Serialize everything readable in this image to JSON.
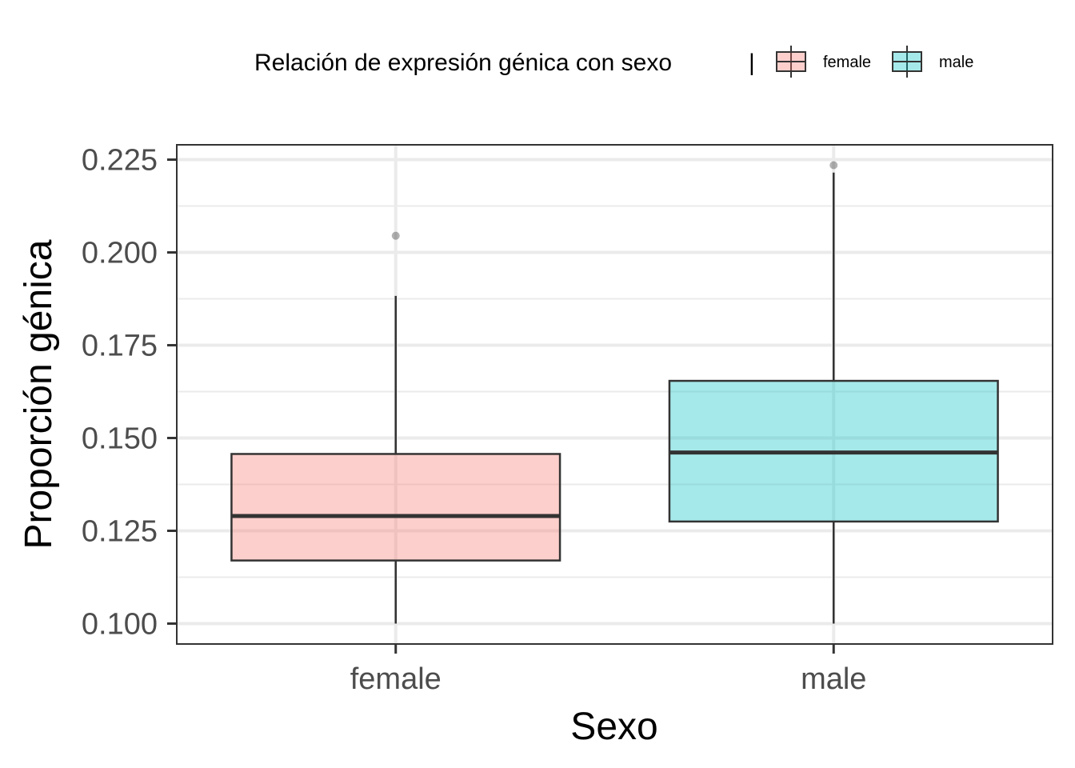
{
  "chart_data": {
    "type": "boxplot",
    "title": "",
    "xlabel": "Sexo",
    "ylabel": "Proporción génica",
    "categories": [
      "female",
      "male"
    ],
    "ylim": [
      0.0945,
      0.229
    ],
    "yticks": [
      0.1,
      0.125,
      0.15,
      0.175,
      0.2,
      0.225
    ],
    "ytick_labels": [
      "0.100",
      "0.125",
      "0.150",
      "0.175",
      "0.200",
      "0.225"
    ],
    "grid": true,
    "legend": {
      "title": "Relación de expresión génica con sexo",
      "separator": "|",
      "position": "top",
      "entries": [
        "female",
        "male"
      ]
    },
    "boxes": [
      {
        "name": "female",
        "whisker_low": 0.1,
        "q1": 0.117,
        "median": 0.129,
        "q3": 0.1457,
        "whisker_high": 0.1883,
        "outliers": [
          0.2045
        ],
        "color": "#f8766d"
      },
      {
        "name": "male",
        "whisker_low": 0.1,
        "q1": 0.1275,
        "median": 0.1461,
        "q3": 0.1654,
        "whisker_high": 0.2215,
        "outliers": [
          0.2235
        ],
        "color": "#00bfc4"
      }
    ]
  }
}
